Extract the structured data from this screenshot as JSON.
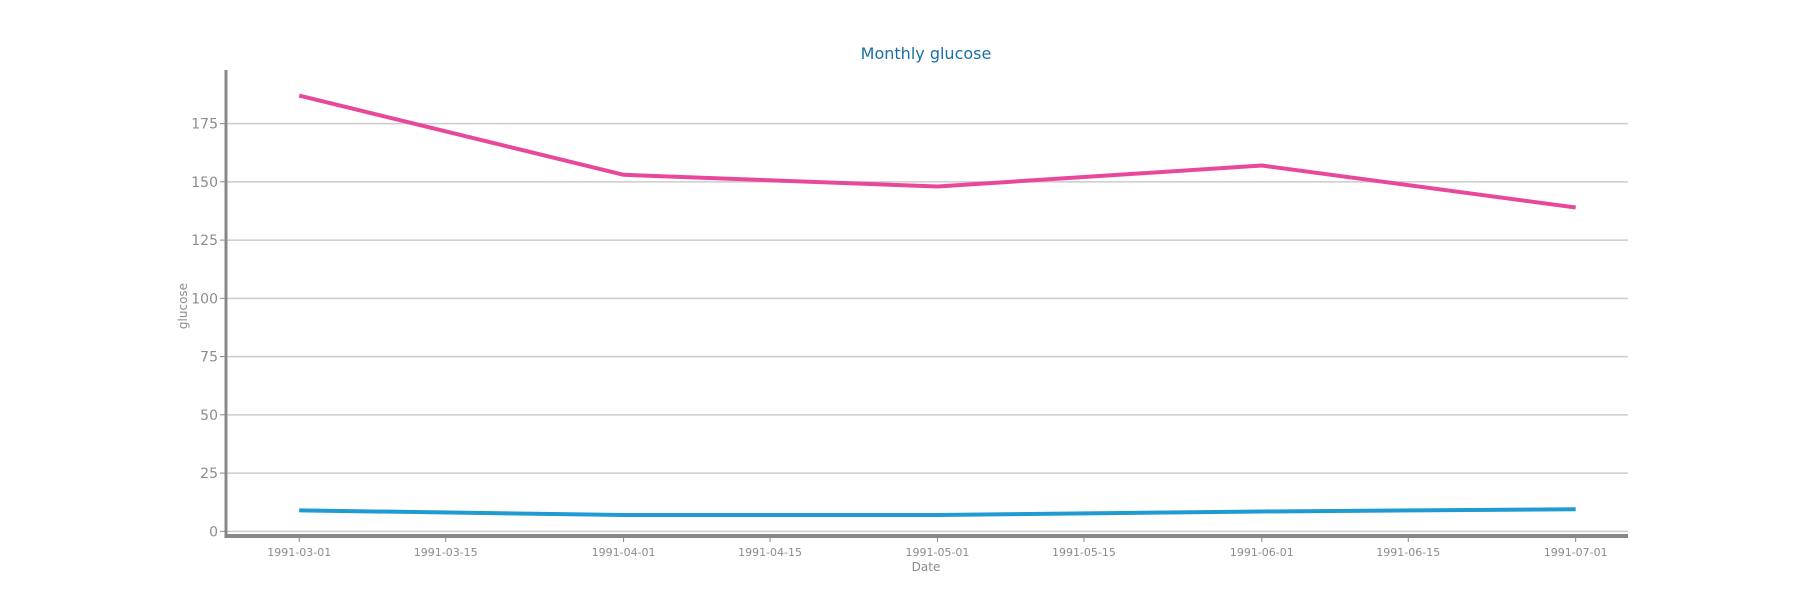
{
  "chart_data": {
    "type": "line",
    "title": "Monthly glucose",
    "xlabel": "Date",
    "ylabel": "glucose",
    "x": [
      "1991-03-01",
      "1991-04-01",
      "1991-05-01",
      "1991-06-01",
      "1991-07-01"
    ],
    "x_ticks": [
      "1991-03-01",
      "1991-03-15",
      "1991-04-01",
      "1991-04-15",
      "1991-05-01",
      "1991-05-15",
      "1991-06-01",
      "1991-06-15",
      "1991-07-01"
    ],
    "y_ticks": [
      0,
      25,
      50,
      75,
      100,
      125,
      150,
      175
    ],
    "xlim": [
      "1991-02-22",
      "1991-07-06"
    ],
    "ylim": [
      -2,
      198
    ],
    "grid": "horizontal",
    "series": [
      {
        "values": [
          187,
          153,
          148,
          157,
          139
        ],
        "color": "#e8489b"
      },
      {
        "values": [
          9,
          7,
          7,
          8.5,
          9.5
        ],
        "color": "#1f9bd1"
      }
    ],
    "colors": {
      "title": "#1a6fa8",
      "axis": "#888888",
      "grid": "#cccccc",
      "tick_text": "#8c8c8c"
    }
  }
}
